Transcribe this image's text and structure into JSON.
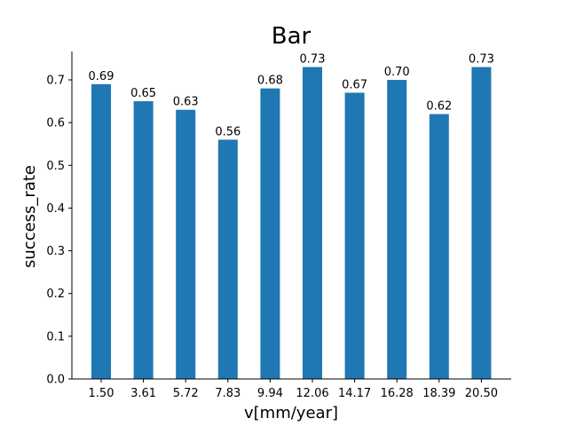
{
  "chart_data": {
    "type": "bar",
    "title": "Bar",
    "xlabel": "v[mm/year]",
    "ylabel": "success_rate",
    "categories": [
      "1.50",
      "3.61",
      "5.72",
      "7.83",
      "9.94",
      "12.06",
      "14.17",
      "16.28",
      "18.39",
      "20.50"
    ],
    "values": [
      0.69,
      0.65,
      0.63,
      0.56,
      0.68,
      0.73,
      0.67,
      0.7,
      0.62,
      0.73
    ],
    "value_labels": [
      "0.69",
      "0.65",
      "0.63",
      "0.56",
      "0.68",
      "0.73",
      "0.67",
      "0.70",
      "0.62",
      "0.73"
    ],
    "ylim": [
      0,
      0.7665
    ],
    "yticks": [
      0.0,
      0.1,
      0.2,
      0.3,
      0.4,
      0.5,
      0.6,
      0.7
    ],
    "ytick_labels": [
      "0.0",
      "0.1",
      "0.2",
      "0.3",
      "0.4",
      "0.5",
      "0.6",
      "0.7"
    ],
    "bar_color": "#1f77b4",
    "grid": false,
    "spines": "left-bottom"
  }
}
